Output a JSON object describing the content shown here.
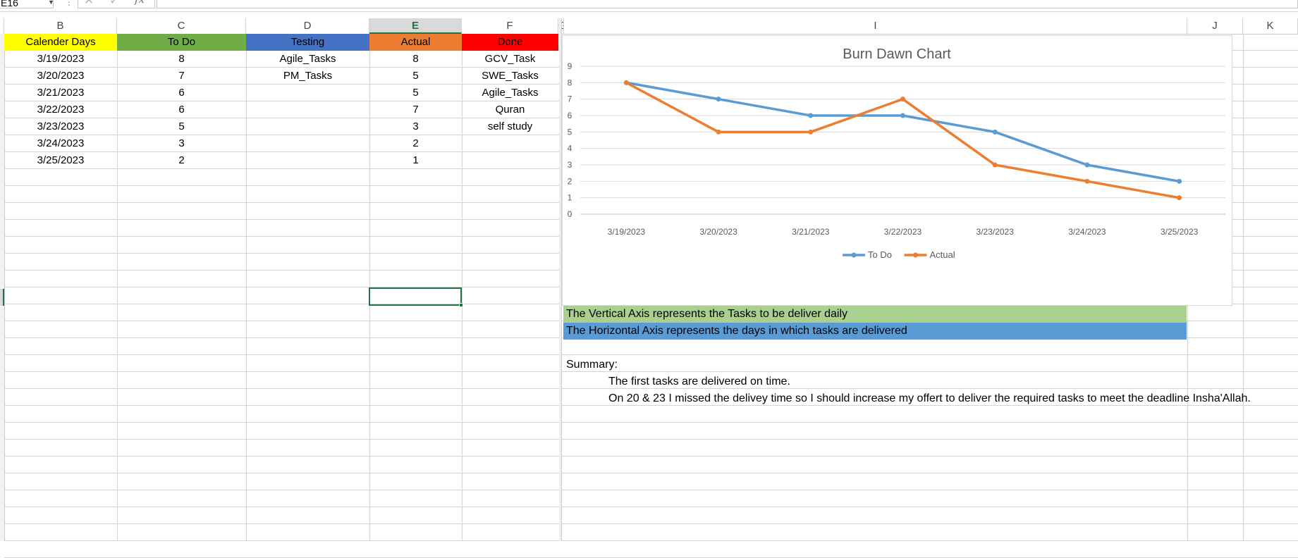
{
  "formula_bar": {
    "name_box": "E16",
    "fx_label": "fx",
    "cancel_symbol": "✕",
    "enter_symbol": "✓",
    "formula": ""
  },
  "columns": [
    "B",
    "C",
    "D",
    "E",
    "F",
    "G",
    "I",
    "J",
    "K"
  ],
  "selected_column": "E",
  "table": {
    "headers": [
      "Calender Days",
      "To Do",
      "Testing",
      "Actual",
      "Done"
    ],
    "header_colors": [
      "#ffff00",
      "#70ad47",
      "#4472c4",
      "#ed7d31",
      "#ff0000"
    ],
    "rows": [
      [
        "3/19/2023",
        "8",
        "Agile_Tasks",
        "8",
        "GCV_Task"
      ],
      [
        "3/20/2023",
        "7",
        "PM_Tasks",
        "5",
        "SWE_Tasks"
      ],
      [
        "3/21/2023",
        "6",
        "",
        "5",
        "Agile_Tasks"
      ],
      [
        "3/22/2023",
        "6",
        "",
        "7",
        "Quran"
      ],
      [
        "3/23/2023",
        "5",
        "",
        "3",
        "self study"
      ],
      [
        "3/24/2023",
        "3",
        "",
        "2",
        ""
      ],
      [
        "3/25/2023",
        "2",
        "",
        "1",
        ""
      ]
    ]
  },
  "chart_data": {
    "type": "line",
    "title": "Burn Dawn Chart",
    "categories": [
      "3/19/2023",
      "3/20/2023",
      "3/21/2023",
      "3/22/2023",
      "3/23/2023",
      "3/24/2023",
      "3/25/2023"
    ],
    "series": [
      {
        "name": "To Do",
        "values": [
          8,
          7,
          6,
          6,
          5,
          3,
          2
        ],
        "color": "#5b9bd5"
      },
      {
        "name": "Actual",
        "values": [
          8,
          5,
          5,
          7,
          3,
          2,
          1
        ],
        "color": "#ed7d31"
      }
    ],
    "ylim": [
      0,
      9
    ],
    "yticks": [
      0,
      1,
      2,
      3,
      4,
      5,
      6,
      7,
      8,
      9
    ],
    "grid": true,
    "legend": "bottom",
    "xlabel": "",
    "ylabel": ""
  },
  "notes": {
    "vertical": "The Vertical Axis represents the Tasks to be deliver daily",
    "horizontal": "The Horizontal Axis represents the days in which tasks are delivered",
    "summary_label": "Summary:",
    "summary_line_1": "The first tasks are delivered on time.",
    "summary_line_2": "On  20 & 23 I missed the delivey time so I should increase my offert to deliver the required tasks to meet the deadline Insha'Allah."
  }
}
